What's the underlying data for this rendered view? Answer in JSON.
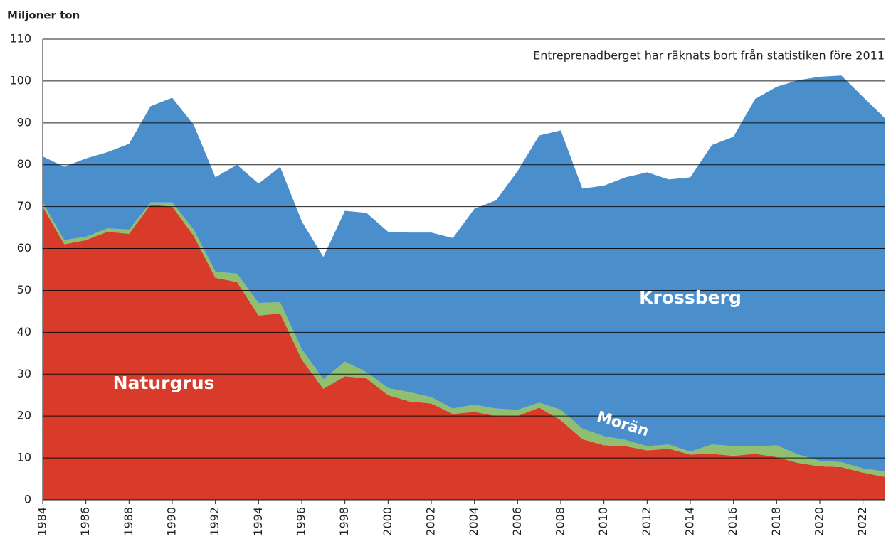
{
  "chart_data": {
    "type": "stacked-area",
    "y_label": "Miljoner ton",
    "annotation": "Entreprenadberget har räknats bort från statistiken före 2011",
    "x": [
      1984,
      1985,
      1986,
      1987,
      1988,
      1989,
      1990,
      1991,
      1992,
      1993,
      1994,
      1995,
      1996,
      1997,
      1998,
      1999,
      2000,
      2001,
      2002,
      2003,
      2004,
      2005,
      2006,
      2007,
      2008,
      2009,
      2010,
      2011,
      2012,
      2013,
      2014,
      2015,
      2016,
      2017,
      2018,
      2019,
      2020,
      2021,
      2022,
      2023
    ],
    "xlim": [
      1984,
      2023
    ],
    "xticks": [
      1984,
      1986,
      1988,
      1990,
      1992,
      1994,
      1996,
      1998,
      2000,
      2002,
      2004,
      2006,
      2008,
      2010,
      2012,
      2014,
      2016,
      2018,
      2020,
      2022
    ],
    "ylim": [
      0,
      110
    ],
    "yticks": [
      0,
      10,
      20,
      30,
      40,
      50,
      60,
      70,
      80,
      90,
      100,
      110
    ],
    "grid": true,
    "series": [
      {
        "name": "Naturgrus",
        "color": "#d93b2b",
        "values": [
          70,
          61,
          62,
          64,
          63.5,
          70.5,
          70,
          63,
          53,
          52,
          44,
          44.5,
          33.5,
          26.5,
          29.5,
          29,
          25,
          23.5,
          23,
          20.5,
          21,
          20,
          20,
          22,
          19,
          14.5,
          13,
          12.8,
          11.8,
          12.2,
          10.8,
          11,
          10.5,
          11,
          10.2,
          8.8,
          8,
          7.8,
          6.5,
          5.5
        ]
      },
      {
        "name": "Morän",
        "color": "#8fbf6f",
        "values": [
          1,
          1,
          0.8,
          0.8,
          1,
          0.5,
          1,
          1.5,
          1.5,
          2,
          3,
          2.7,
          2.5,
          2.3,
          3.5,
          1.5,
          1.7,
          2.2,
          1.5,
          1.3,
          1.7,
          1.8,
          1.5,
          1.2,
          2.5,
          2.5,
          2.2,
          1.5,
          1,
          1,
          0.7,
          2.2,
          2.3,
          1.7,
          2.8,
          2,
          1.3,
          1.2,
          1,
          1.3
        ]
      },
      {
        "name": "Krossberg",
        "color": "#4a8fcc",
        "values": [
          11,
          17.5,
          18.7,
          18.2,
          20.5,
          23,
          25,
          25,
          22.5,
          26,
          28.5,
          32.3,
          30.5,
          29.2,
          36,
          38,
          37.3,
          38.1,
          39.3,
          40.7,
          46.8,
          49.7,
          57,
          63.8,
          66.7,
          57.3,
          59.8,
          62.7,
          65.4,
          63.3,
          65.5,
          71.5,
          73.9,
          83,
          85.6,
          89.4,
          91.7,
          92.3,
          88.7,
          84.4
        ]
      }
    ]
  }
}
